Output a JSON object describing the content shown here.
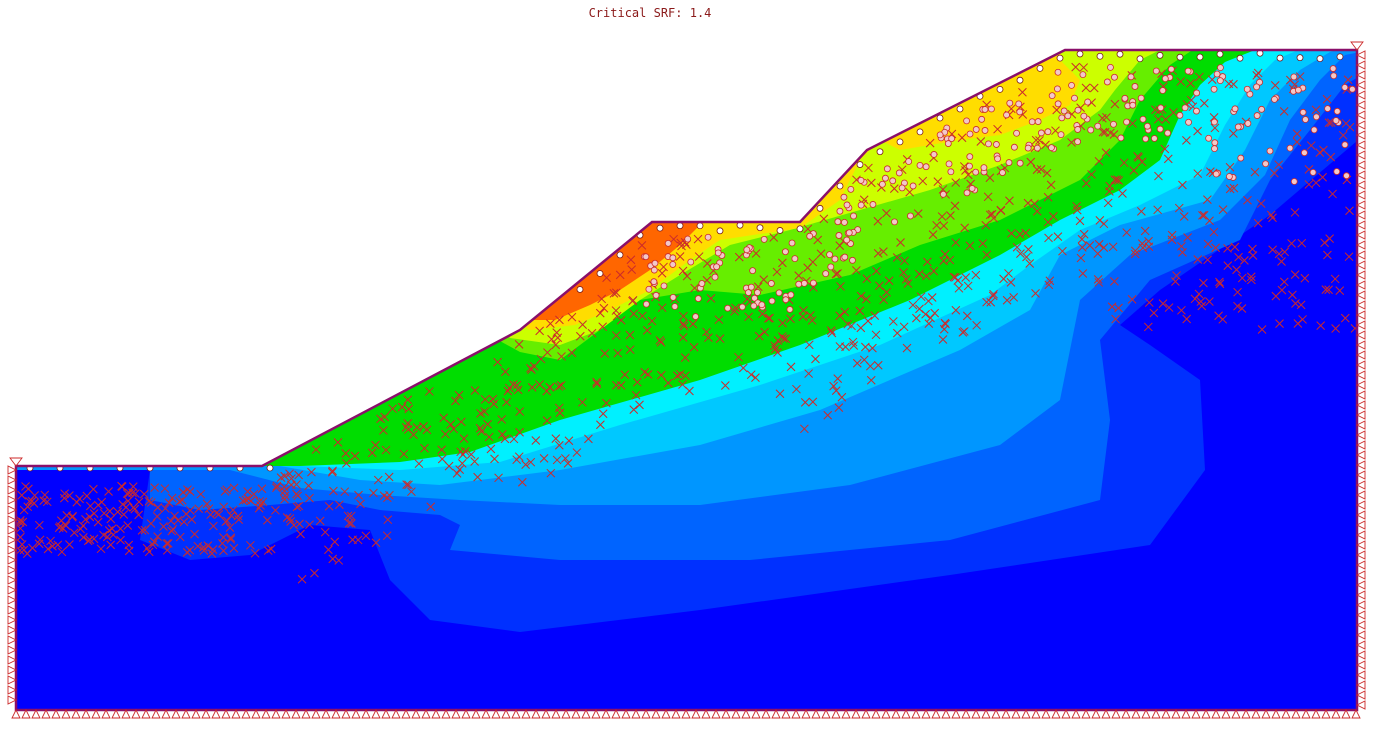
{
  "title": "Critical SRF: 1.4",
  "colors": {
    "boundary": "#8a0f6a",
    "marker": "#cc2a2a",
    "band_0": "#0000ff",
    "band_1": "#0030ff",
    "band_2": "#0064ff",
    "band_3": "#0096ff",
    "band_4": "#00c8ff",
    "band_5": "#00f0ff",
    "band_6": "#00dd00",
    "band_7": "#66ee00",
    "band_8": "#ccff00",
    "band_9": "#ffdd00",
    "band_10": "#ff6600"
  }
}
